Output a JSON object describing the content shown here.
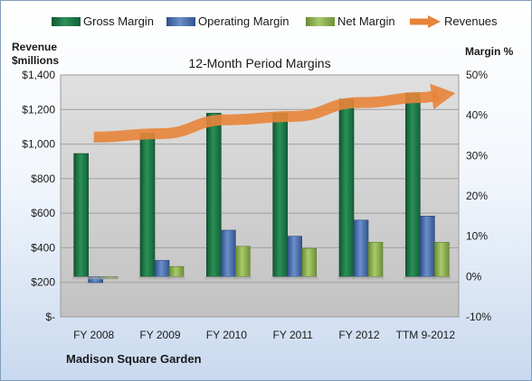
{
  "chart_data": {
    "type": "bar",
    "title": "12-Month Period Margins",
    "company": "Madison Square Garden",
    "left_axis_label": [
      "Revenue",
      "$millions"
    ],
    "right_axis_label": "Margin %",
    "categories": [
      "FY 2008",
      "FY 2009",
      "FY 2010",
      "FY 2011",
      "FY 2012",
      "TTM 9-2012"
    ],
    "left_axis": {
      "min": 0,
      "max": 1400,
      "step": 200,
      "tick_labels": [
        "$-",
        "$200",
        "$400",
        "$600",
        "$800",
        "$1,000",
        "$1,200",
        "$1,400"
      ]
    },
    "right_axis": {
      "min": -10,
      "max": 50,
      "step": 10,
      "tick_labels": [
        "-10%",
        "0%",
        "10%",
        "20%",
        "30%",
        "40%",
        "50%"
      ]
    },
    "grid": true,
    "legend_position": "top",
    "series": [
      {
        "name": "Gross Margin",
        "type": "bar",
        "axis": "right",
        "color": "#1e7a45",
        "values": [
          30.5,
          35.5,
          40.5,
          40.5,
          44.0,
          45.5
        ]
      },
      {
        "name": "Operating Margin",
        "type": "bar",
        "axis": "right",
        "color": "#4a6fb0",
        "values": [
          -1.5,
          4.0,
          11.5,
          10.0,
          14.0,
          15.0
        ]
      },
      {
        "name": "Net Margin",
        "type": "bar",
        "axis": "right",
        "color": "#8fb14f",
        "values": [
          -0.5,
          2.5,
          7.5,
          7.0,
          8.5,
          8.5
        ]
      },
      {
        "name": "Revenues",
        "type": "line",
        "axis": "left",
        "color": "#e8843a",
        "values": [
          1040,
          1060,
          1140,
          1160,
          1240,
          1270
        ]
      }
    ]
  }
}
